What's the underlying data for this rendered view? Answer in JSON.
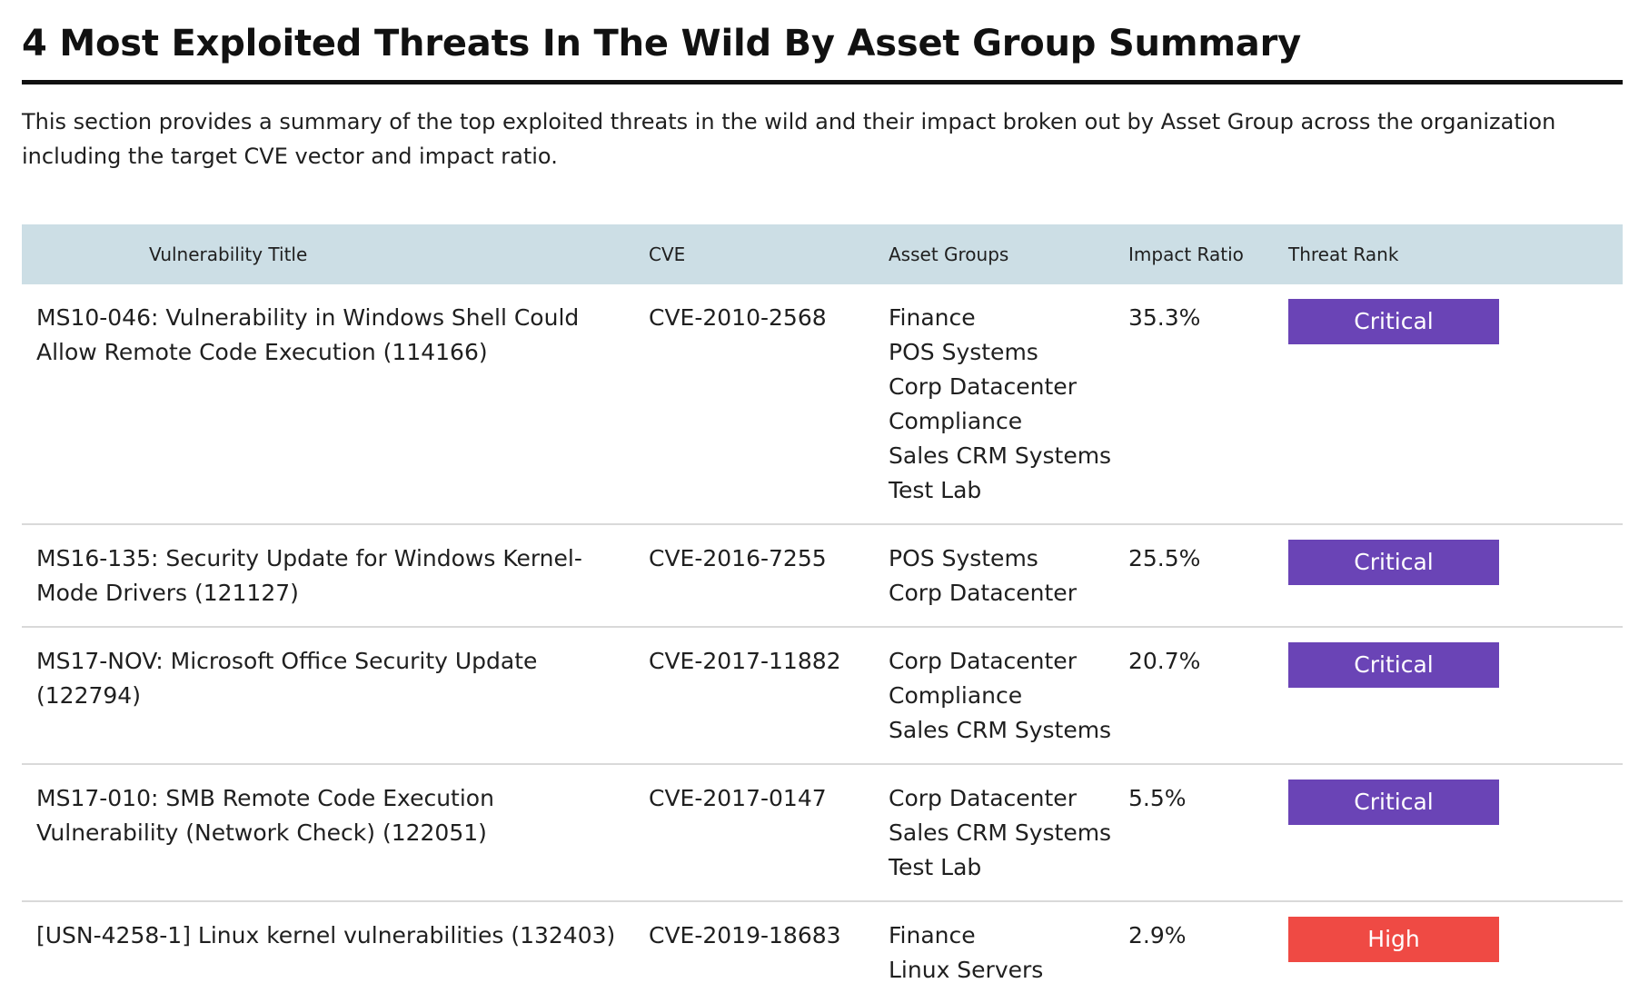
{
  "heading": "4 Most Exploited Threats In The Wild By Asset Group Summary",
  "intro": "This section provides a summary of the top exploited threats in the wild and their impact broken out by Asset Group across the organization including the target CVE vector and impact ratio.",
  "table": {
    "headers": {
      "title": "Vulnerability Title",
      "cve": "CVE",
      "groups": "Asset Groups",
      "impact": "Impact Ratio",
      "rank": "Threat Rank"
    },
    "rank_colors": {
      "Critical": "#6a44b6",
      "High": "#ef4a44"
    },
    "rows": [
      {
        "title": "MS10-046: Vulnerability in Windows Shell Could Allow Remote Code Execution (114166)",
        "cve": "CVE-2010-2568",
        "groups": [
          "Finance",
          "POS Systems",
          "Corp Datacenter",
          "Compliance",
          "Sales CRM Systems",
          "Test Lab"
        ],
        "impact": "35.3%",
        "rank": "Critical"
      },
      {
        "title": "MS16-135: Security Update for Windows Kernel-Mode Drivers (121127)",
        "cve": "CVE-2016-7255",
        "groups": [
          "POS Systems",
          "Corp Datacenter"
        ],
        "impact": "25.5%",
        "rank": "Critical"
      },
      {
        "title": "MS17-NOV: Microsoft Office Security Update (122794)",
        "cve": "CVE-2017-11882",
        "groups": [
          "Corp Datacenter",
          "Compliance",
          "Sales CRM Systems"
        ],
        "impact": "20.7%",
        "rank": "Critical"
      },
      {
        "title": "MS17-010: SMB Remote Code Execution Vulnerability (Network Check) (122051)",
        "cve": "CVE-2017-0147",
        "groups": [
          "Corp Datacenter",
          "Sales CRM Systems",
          "Test Lab"
        ],
        "impact": "5.5%",
        "rank": "Critical"
      },
      {
        "title": "[USN-4258-1] Linux kernel vulnerabilities (132403)",
        "cve": "CVE-2019-18683",
        "groups": [
          "Finance",
          "Linux Servers"
        ],
        "impact": "2.9%",
        "rank": "High"
      }
    ]
  }
}
